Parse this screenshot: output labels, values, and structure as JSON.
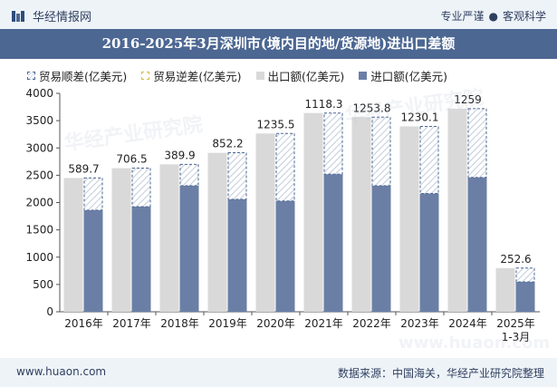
{
  "header": {
    "logo_text": "华经情报网",
    "slogan_left": "专业严谨",
    "slogan_sep": "●",
    "slogan_right": "客观科学"
  },
  "title": "2016-2025年3月深圳市(境内目的地/货源地)进出口差额",
  "legend": {
    "surplus": "贸易顺差(亿美元)",
    "deficit": "贸易逆差(亿美元)",
    "export": "出口额(亿美元)",
    "import": "进口额(亿美元)"
  },
  "footer": {
    "url": "www.huaon.com",
    "source": "数据来源：中国海关，华经产业研究院整理"
  },
  "watermarks": [
    "华经产业研究院",
    "华经产业研究院",
    "www.huaon.com"
  ],
  "colors": {
    "export": "#d9d9d9",
    "import": "#6b7fa6",
    "surplus_border": "#4c6792",
    "title_bg": "#4c6792"
  },
  "chart_data": {
    "type": "bar",
    "categories": [
      "2016年",
      "2017年",
      "2018年",
      "2019年",
      "2020年",
      "2021年",
      "2022年",
      "2023年",
      "2024年",
      "2025年\n1-3月"
    ],
    "series": [
      {
        "name": "出口额(亿美元)",
        "values": [
          2450,
          2630,
          2700,
          2910,
          3265,
          3640,
          3565,
          3395,
          3720,
          800
        ]
      },
      {
        "name": "进口额(亿美元)",
        "values": [
          1860,
          1925,
          2310,
          2060,
          2030,
          2520,
          2310,
          2165,
          2461,
          548
        ]
      },
      {
        "name": "贸易顺差(亿美元)",
        "values": [
          589.7,
          706.5,
          389.9,
          852.2,
          1235.5,
          1118.3,
          1253.8,
          1230.1,
          1259,
          252.6
        ]
      }
    ],
    "labels": [
      "589.7",
      "706.5",
      "389.9",
      "852.2",
      "1235.5",
      "1118.3",
      "1253.8",
      "1230.1",
      "1259",
      "252.6"
    ],
    "yticks": [
      "0",
      "500",
      "1000",
      "1500",
      "2000",
      "2500",
      "3000",
      "3500",
      "4000"
    ],
    "ylim": [
      0,
      4000
    ],
    "grid": false
  }
}
